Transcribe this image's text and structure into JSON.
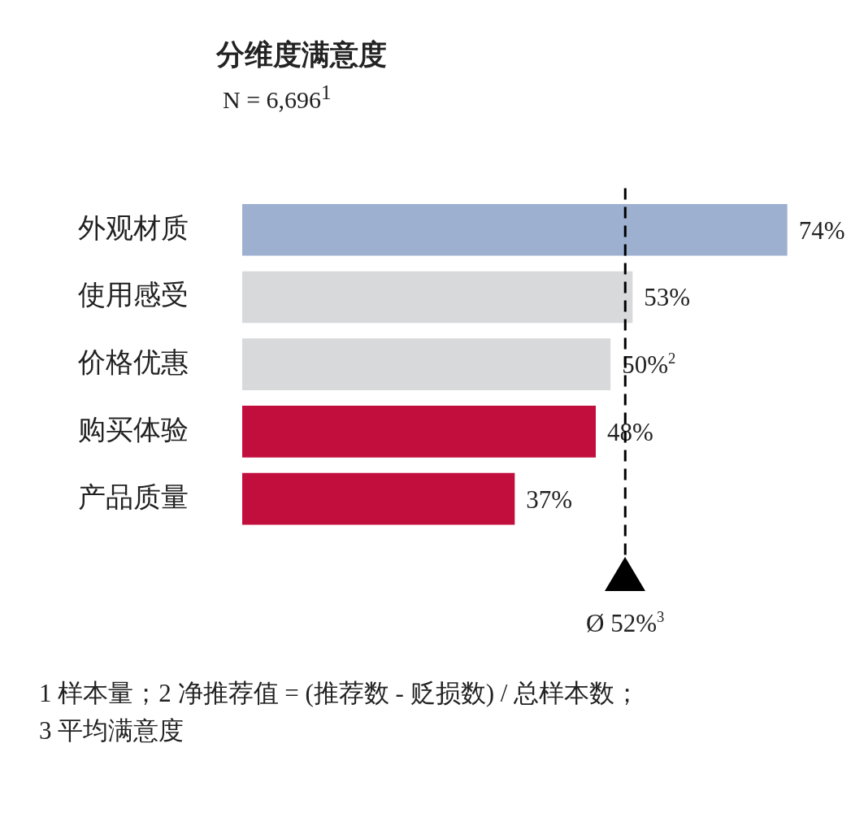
{
  "chart_data": {
    "type": "bar",
    "orientation": "horizontal",
    "title": "分维度满意度",
    "subtitle": "N = 6,696$^{1}$",
    "categories": [
      "外观材质",
      "使用感受",
      "价格优惠",
      "购买体验",
      "产品质量"
    ],
    "values": [
      74,
      53,
      50,
      48,
      37
    ],
    "colors": [
      "#9db0cf",
      "#d7d9da",
      "#d7d9da",
      "#c20e3c",
      "#c20e3c"
    ],
    "value_labels": [
      "74%",
      "53%",
      "50%$^{2}$",
      "48%",
      "37%"
    ],
    "ref_lines": [
      {
        "axis": "x",
        "value": 52,
        "label": "Ø 52%$^{3}$",
        "color": "#000000",
        "line_style": "dashed"
      }
    ],
    "annotations": [
      "1 样本量；2 净推荐值 = (推荐数 - 贬损数) / 总样本数；",
      "3 平均满意度"
    ],
    "grid": false,
    "legend": false
  }
}
